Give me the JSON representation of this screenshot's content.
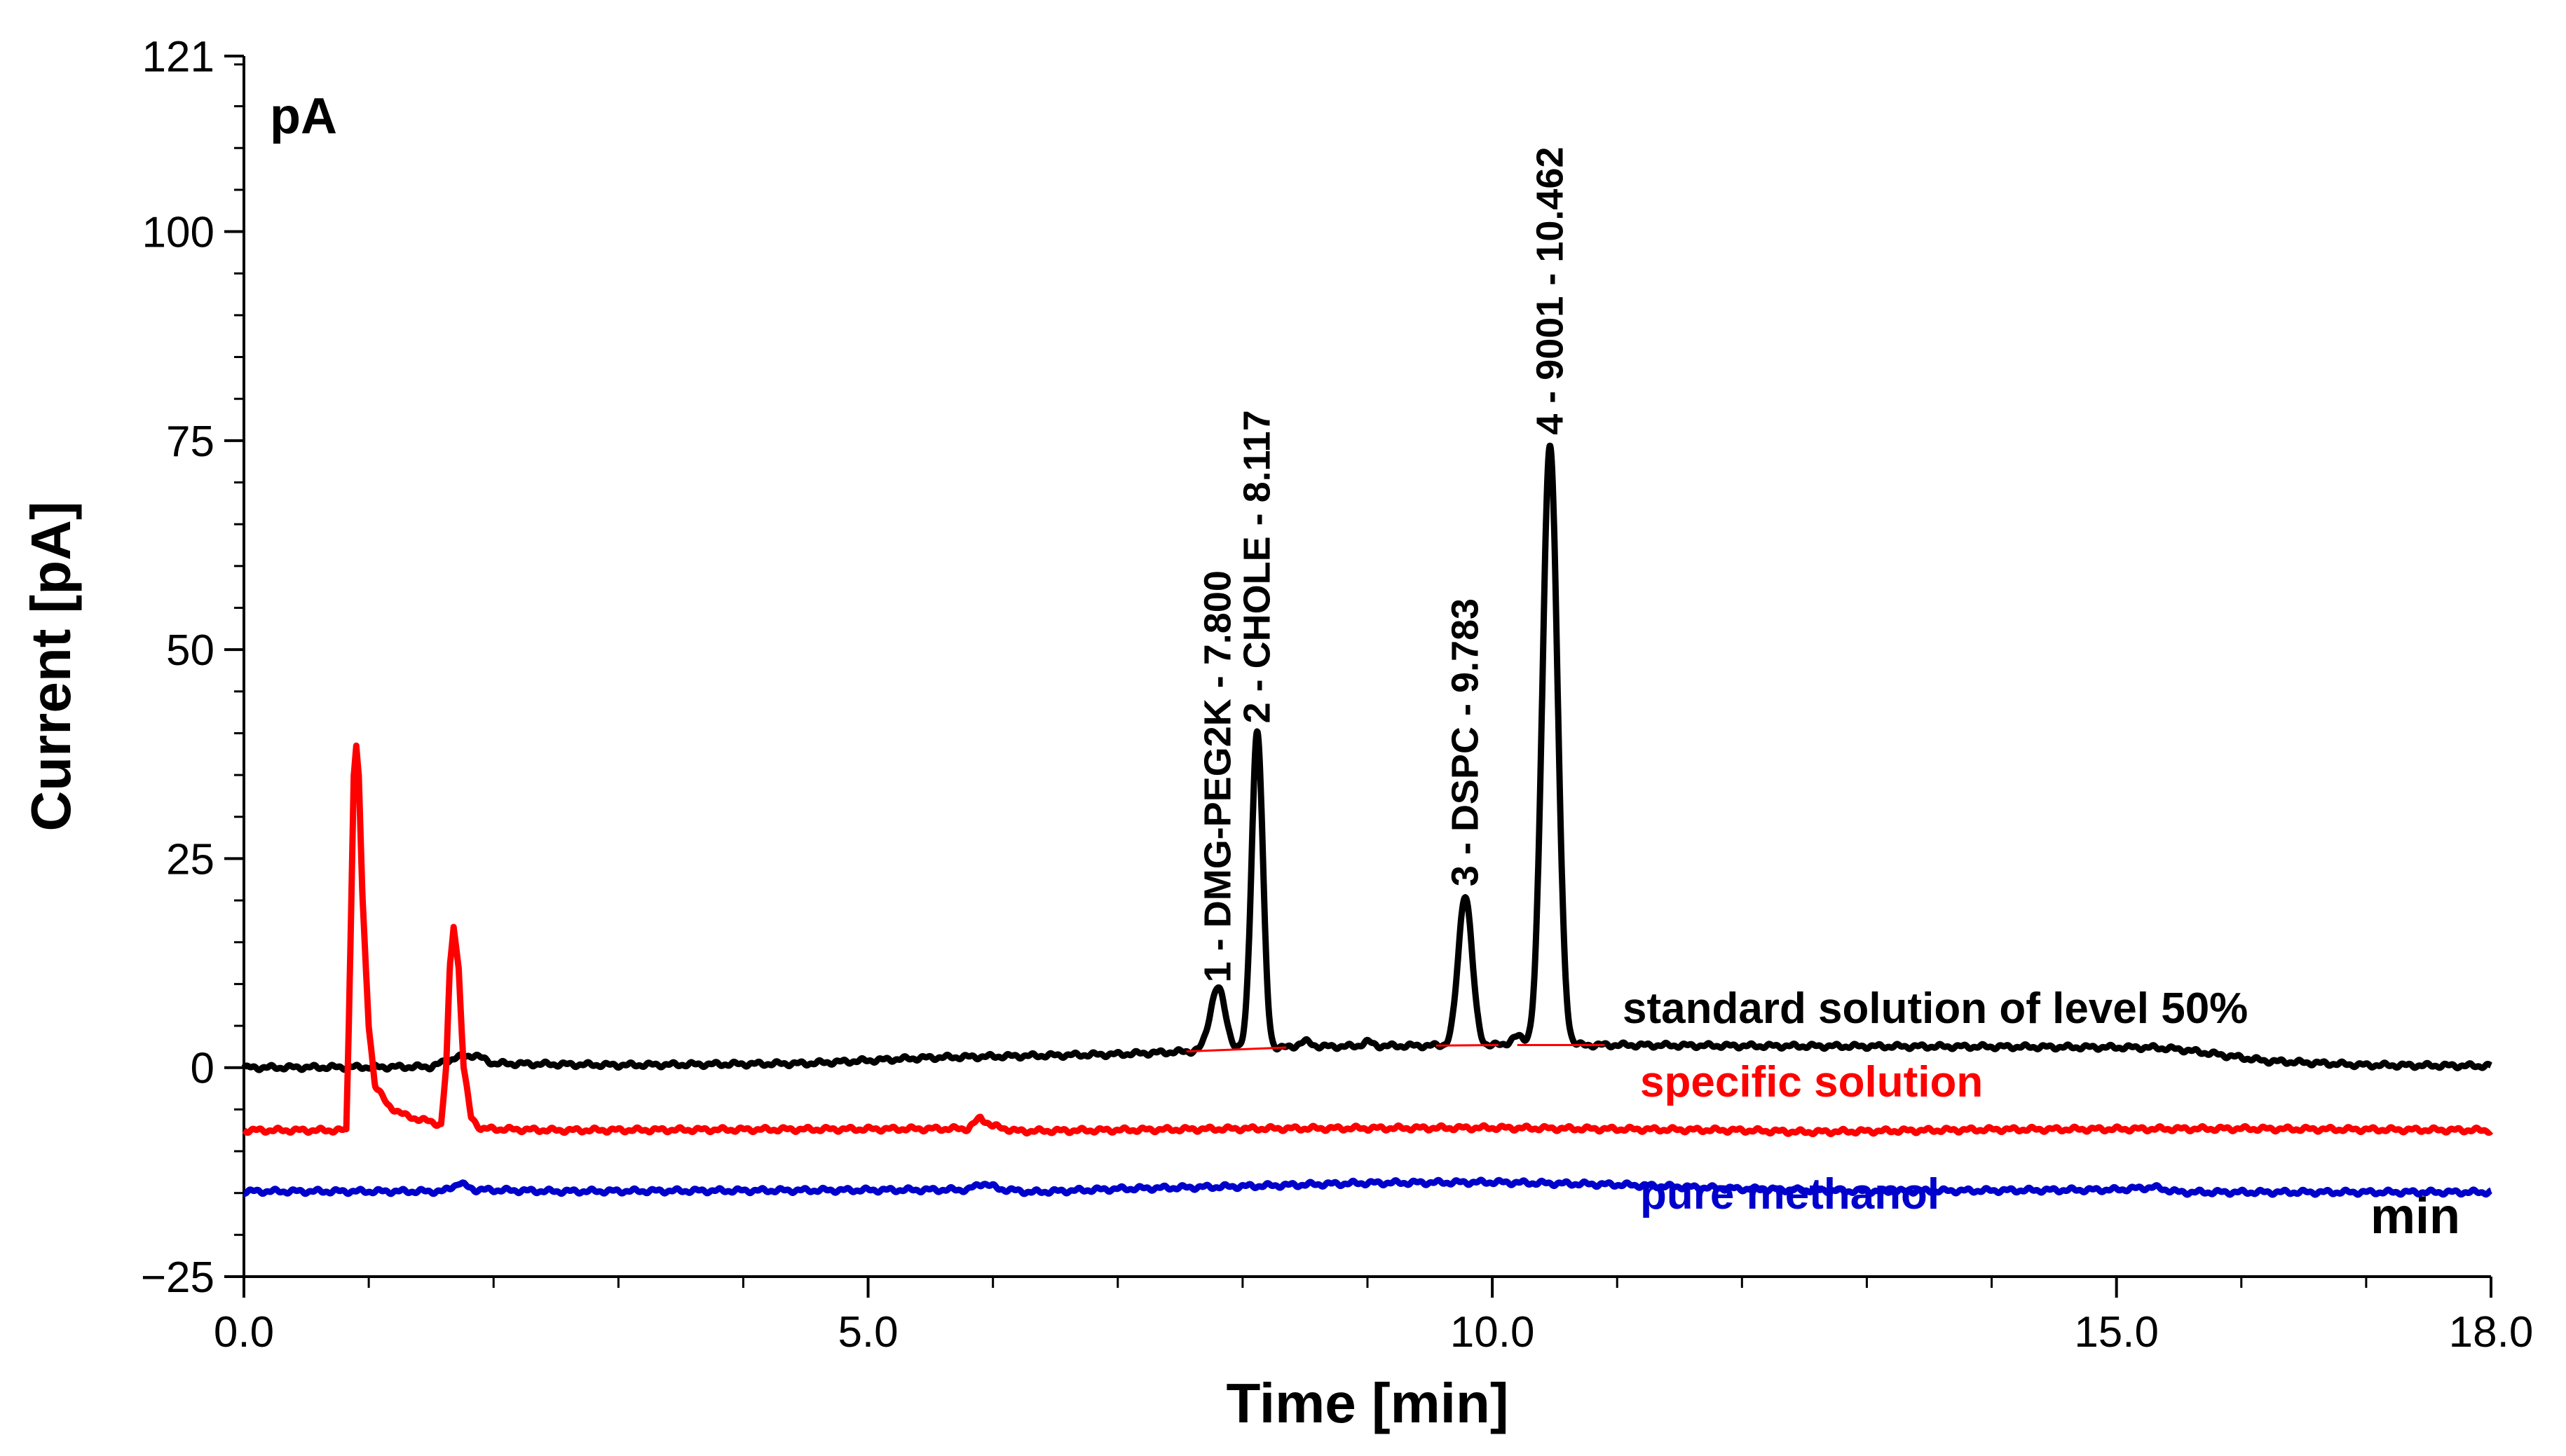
{
  "chart_data": {
    "type": "line",
    "title": "",
    "xlabel": "Time [min]",
    "ylabel": "Current [pA]",
    "unit_top_left": "pA",
    "unit_x_corner": "min",
    "xlim": [
      0.0,
      18.0
    ],
    "ylim": [
      -25,
      121
    ],
    "x_ticks": [
      {
        "v": 0.0,
        "label": "0.0"
      },
      {
        "v": 5.0,
        "label": "5.0"
      },
      {
        "v": 10.0,
        "label": "10.0"
      },
      {
        "v": 15.0,
        "label": "15.0"
      },
      {
        "v": 18.0,
        "label": "18.0"
      }
    ],
    "x_minor_ticks": [
      1,
      2,
      3,
      4,
      6,
      7,
      8,
      9,
      11,
      12,
      13,
      14,
      16,
      17
    ],
    "y_ticks": [
      {
        "v": -25,
        "label": "−25"
      },
      {
        "v": 0,
        "label": "0"
      },
      {
        "v": 25,
        "label": "25"
      },
      {
        "v": 50,
        "label": "50"
      },
      {
        "v": 75,
        "label": "75"
      },
      {
        "v": 100,
        "label": "100"
      },
      {
        "v": 121,
        "label": "121"
      }
    ],
    "series": [
      {
        "name": "standard solution of level 50%",
        "color": "#000000",
        "baseline_points": [
          [
            0,
            0
          ],
          [
            1.5,
            0.1
          ],
          [
            1.7,
            1.2
          ],
          [
            1.85,
            1.5
          ],
          [
            2.0,
            0.5
          ],
          [
            3.0,
            0.3
          ],
          [
            4.5,
            0.5
          ],
          [
            5.5,
            1.2
          ],
          [
            7.0,
            1.6
          ],
          [
            7.5,
            1.9
          ],
          [
            8.5,
            2.5
          ],
          [
            10.0,
            2.7
          ],
          [
            11.0,
            2.7
          ],
          [
            12.0,
            2.6
          ],
          [
            14.0,
            2.5
          ],
          [
            15.3,
            2.4
          ],
          [
            15.5,
            2.2
          ],
          [
            16.2,
            0.8
          ],
          [
            17.0,
            0.3
          ],
          [
            18.0,
            0.2
          ]
        ],
        "peaks": [
          {
            "t": 7.8,
            "height": 7.5,
            "sigma": 0.06
          },
          {
            "t": 8.117,
            "height": 38.0,
            "sigma": 0.045
          },
          {
            "t": 8.5,
            "height": 0.6,
            "sigma": 0.05
          },
          {
            "t": 9.0,
            "height": 0.5,
            "sigma": 0.04
          },
          {
            "t": 9.783,
            "height": 18.0,
            "sigma": 0.055
          },
          {
            "t": 10.2,
            "height": 1.0,
            "sigma": 0.05
          },
          {
            "t": 10.462,
            "height": 72.0,
            "sigma": 0.06
          }
        ]
      },
      {
        "name": "specific solution",
        "color": "#ff0000",
        "baseline_points": [
          [
            0,
            -7.5
          ],
          [
            18,
            -7.5
          ]
        ],
        "points": [
          [
            0,
            -7.5
          ],
          [
            0.82,
            -7.5
          ],
          [
            0.84,
            5
          ],
          [
            0.86,
            20
          ],
          [
            0.88,
            35
          ],
          [
            0.9,
            38.5
          ],
          [
            0.92,
            35
          ],
          [
            0.95,
            20
          ],
          [
            1.0,
            5
          ],
          [
            1.05,
            -2
          ],
          [
            1.15,
            -4.5
          ],
          [
            1.3,
            -5.8
          ],
          [
            1.5,
            -6.5
          ],
          [
            1.58,
            -6.8
          ],
          [
            1.62,
            0
          ],
          [
            1.65,
            12
          ],
          [
            1.68,
            17
          ],
          [
            1.72,
            12
          ],
          [
            1.76,
            0
          ],
          [
            1.82,
            -6
          ],
          [
            1.9,
            -7.3
          ],
          [
            2.5,
            -7.5
          ],
          [
            5.8,
            -7.3
          ],
          [
            5.9,
            -6
          ],
          [
            6.0,
            -7.0
          ],
          [
            6.2,
            -7.6
          ],
          [
            8.0,
            -7.3
          ],
          [
            10.0,
            -7.2
          ],
          [
            12.0,
            -7.5
          ],
          [
            12.5,
            -7.7
          ],
          [
            14.0,
            -7.4
          ],
          [
            16.0,
            -7.3
          ],
          [
            18.0,
            -7.5
          ]
        ]
      },
      {
        "name": "pure methanol",
        "color": "#0000cc",
        "points": [
          [
            0,
            -14.8
          ],
          [
            1.6,
            -14.8
          ],
          [
            1.72,
            -13.8
          ],
          [
            1.85,
            -14.6
          ],
          [
            2.5,
            -14.8
          ],
          [
            5.8,
            -14.6
          ],
          [
            5.92,
            -13.8
          ],
          [
            6.05,
            -14.5
          ],
          [
            6.3,
            -14.9
          ],
          [
            7.0,
            -14.5
          ],
          [
            8.0,
            -14.2
          ],
          [
            9.0,
            -13.8
          ],
          [
            10.0,
            -13.7
          ],
          [
            11.0,
            -14.0
          ],
          [
            12.0,
            -14.5
          ],
          [
            13.0,
            -14.8
          ],
          [
            14.0,
            -14.7
          ],
          [
            15.0,
            -14.6
          ],
          [
            15.3,
            -14.3
          ],
          [
            15.5,
            -14.9
          ],
          [
            18.0,
            -14.9
          ]
        ]
      }
    ],
    "peak_labels": [
      {
        "t": 7.8,
        "y": 8.5,
        "text": "1 - DMG-PEG2K - 7.800"
      },
      {
        "t": 8.117,
        "y": 39.5,
        "text": "2 - CHOLE - 8.117"
      },
      {
        "t": 9.783,
        "y": 20.0,
        "text": "3 - DSPC - 9.783"
      },
      {
        "t": 10.462,
        "y": 74.0,
        "text": "4 - 9001 - 10.462"
      }
    ],
    "legend_entries": [
      {
        "text": "standard solution of level 50%",
        "color": "#000000"
      },
      {
        "text": "specific solution",
        "color": "#ff0000"
      },
      {
        "text": "pure methanol",
        "color": "#0000cc"
      }
    ]
  }
}
